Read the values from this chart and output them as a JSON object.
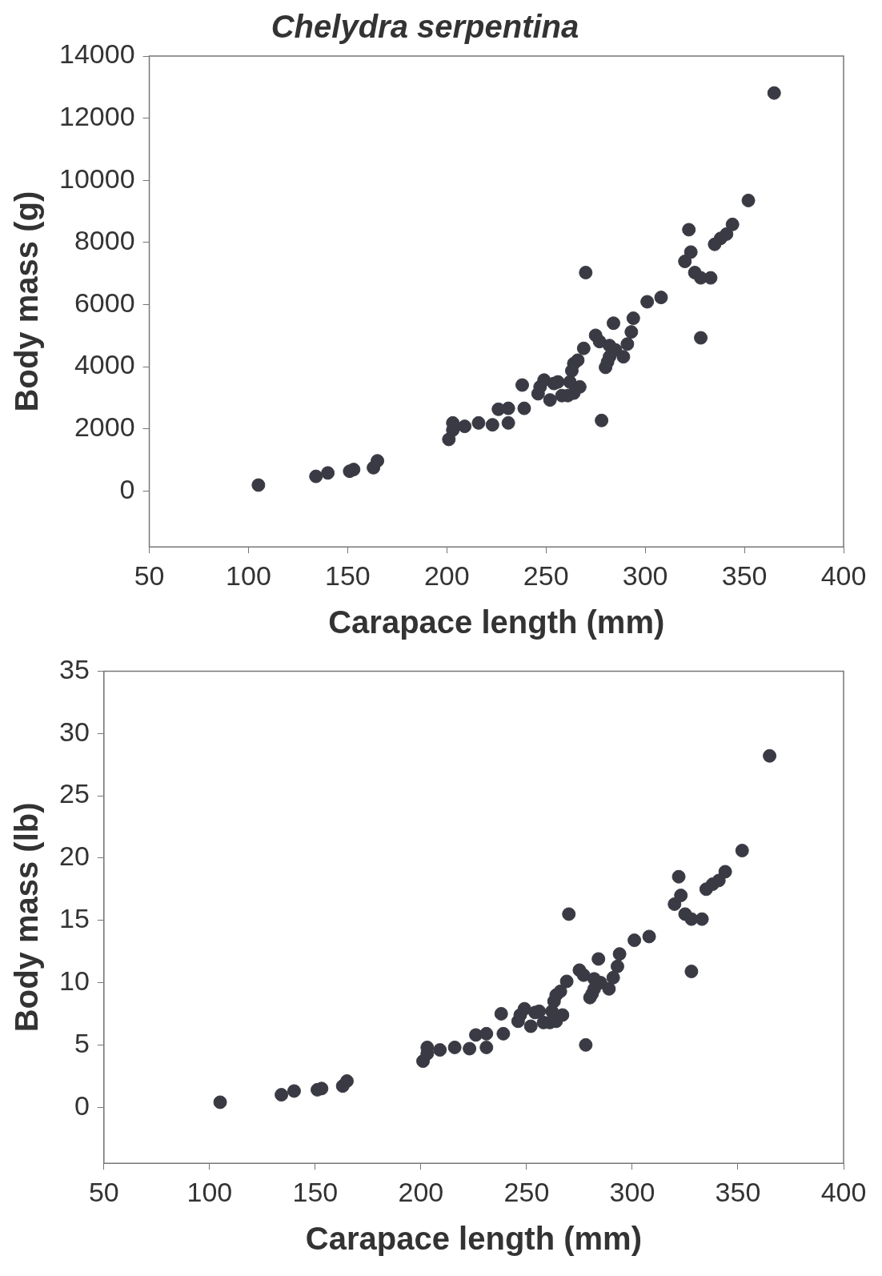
{
  "chart_data": [
    {
      "type": "scatter",
      "title": "Chelydra serpentina",
      "xlabel": "Carapace length (mm)",
      "ylabel": "Body mass (g)",
      "color": "#3a3a44",
      "marker": "circle",
      "grid": false,
      "legend": false,
      "x": [
        105,
        134,
        140,
        151,
        153,
        163,
        165,
        201,
        203,
        203,
        209,
        216,
        223,
        226,
        231,
        231,
        238,
        239,
        246,
        247,
        249,
        252,
        254,
        256,
        258,
        261,
        262,
        263,
        264,
        266,
        264,
        267,
        269,
        270,
        278,
        275,
        277,
        280,
        281,
        282,
        285,
        282,
        284,
        289,
        291,
        293,
        294,
        301,
        308,
        320,
        322,
        323,
        325,
        328,
        333,
        328,
        335,
        338,
        341,
        344,
        352,
        365
      ],
      "values": [
        190,
        470,
        580,
        636,
        690,
        750,
        970,
        1660,
        1960,
        2190,
        2080,
        2190,
        2130,
        2630,
        2190,
        2660,
        3410,
        2660,
        3130,
        3350,
        3570,
        2930,
        3460,
        3510,
        3070,
        3070,
        3510,
        3870,
        4100,
        4210,
        3150,
        3350,
        4590,
        7030,
        2270,
        5010,
        4810,
        3980,
        4150,
        4320,
        4540,
        4680,
        5400,
        4320,
        4730,
        5120,
        5560,
        6090,
        6230,
        7390,
        8410,
        7690,
        7030,
        6860,
        6860,
        4930,
        7940,
        8130,
        8270,
        8580,
        9350,
        12810
      ],
      "xlim": [
        50,
        400
      ],
      "xticks": [
        50,
        100,
        150,
        200,
        250,
        300,
        350,
        400
      ],
      "ylim": [
        -1800,
        14000
      ],
      "yticks": [
        0,
        2000,
        4000,
        6000,
        8000,
        10000,
        12000,
        14000
      ]
    },
    {
      "type": "scatter",
      "xlabel": "Carapace length (mm)",
      "ylabel": "Body mass (lb)",
      "color": "#3a3a44",
      "marker": "circle",
      "grid": false,
      "legend": false,
      "x": [
        105,
        134,
        140,
        151,
        153,
        163,
        165,
        201,
        203,
        203,
        209,
        216,
        223,
        226,
        231,
        231,
        238,
        239,
        246,
        247,
        249,
        252,
        254,
        256,
        258,
        261,
        262,
        263,
        264,
        266,
        264,
        267,
        269,
        270,
        278,
        275,
        277,
        280,
        281,
        282,
        285,
        282,
        284,
        289,
        291,
        293,
        294,
        301,
        308,
        320,
        322,
        323,
        325,
        328,
        333,
        328,
        335,
        338,
        341,
        344,
        352,
        365
      ],
      "values": [
        0.4,
        1.0,
        1.3,
        1.4,
        1.5,
        1.7,
        2.1,
        3.7,
        4.3,
        4.8,
        4.6,
        4.8,
        4.7,
        5.8,
        4.8,
        5.9,
        7.5,
        5.9,
        6.9,
        7.4,
        7.9,
        6.5,
        7.6,
        7.7,
        6.8,
        6.8,
        7.7,
        8.5,
        9.0,
        9.3,
        6.9,
        7.4,
        10.1,
        15.5,
        5.0,
        11.0,
        10.6,
        8.8,
        9.1,
        9.5,
        10.0,
        10.3,
        11.9,
        9.5,
        10.4,
        11.3,
        12.3,
        13.4,
        13.7,
        16.3,
        18.5,
        17.0,
        15.5,
        15.1,
        15.1,
        10.9,
        17.5,
        17.9,
        18.2,
        18.9,
        20.6,
        28.2
      ],
      "xlim": [
        50,
        400
      ],
      "xticks": [
        50,
        100,
        150,
        200,
        250,
        300,
        350,
        400
      ],
      "ylim": [
        -4.5,
        35
      ],
      "yticks": [
        0,
        5,
        10,
        15,
        20,
        25,
        30,
        35
      ]
    }
  ]
}
